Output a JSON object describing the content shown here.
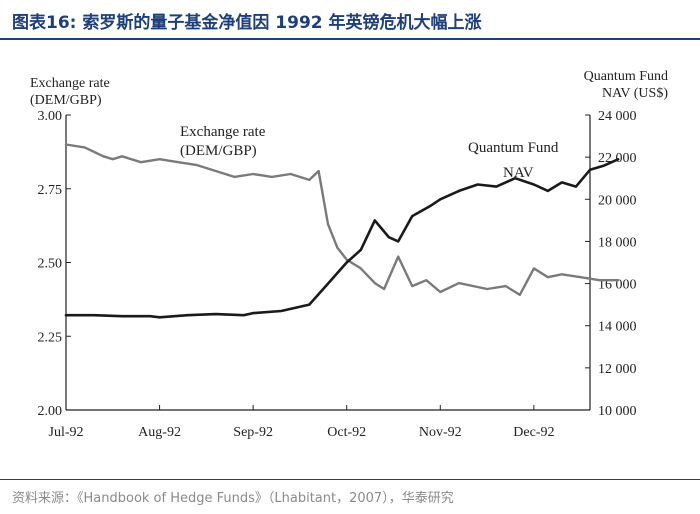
{
  "figure_title": "图表16:  索罗斯的量子基金净值因 1992 年英镑危机大幅上涨",
  "source_text": "资料来源：《Handbook of Hedge Funds》（Lhabitant，2007），华泰研究",
  "chart_data": {
    "type": "line",
    "x_categories": [
      "Jul-92",
      "Aug-92",
      "Sep-92",
      "Oct-92",
      "Nov-92",
      "Dec-92"
    ],
    "left_axis": {
      "label_line1": "Exchange rate",
      "label_line2": "(DEM/GBP)",
      "range": [
        2.0,
        3.0
      ],
      "ticks": [
        "3.00",
        "2.75",
        "2.50",
        "2.25",
        "2.00"
      ],
      "tick_values": [
        3.0,
        2.75,
        2.5,
        2.25,
        2.0
      ]
    },
    "right_axis": {
      "label_line1": "Quantum Fund",
      "label_line2": "NAV (US$)",
      "range": [
        10000,
        24000
      ],
      "ticks": [
        "24 000",
        "22 000",
        "20 000",
        "18 000",
        "16 000",
        "14 000",
        "12 000",
        "10 000"
      ],
      "tick_values": [
        24000,
        22000,
        20000,
        18000,
        16000,
        14000,
        12000,
        10000
      ]
    },
    "annotations": {
      "exchange_line1": "Exchange rate",
      "exchange_line2": "(DEM/GBP)",
      "fund_line1": "Quantum Fund",
      "fund_line2": "NAV"
    },
    "series": [
      {
        "name": "Exchange rate (DEM/GBP)",
        "axis": "left",
        "color": "#7a7a7a",
        "x": [
          0.0,
          0.2,
          0.4,
          0.5,
          0.6,
          0.8,
          1.0,
          1.2,
          1.4,
          1.6,
          1.8,
          2.0,
          2.2,
          2.4,
          2.6,
          2.7,
          2.8,
          2.9,
          3.0,
          3.15,
          3.3,
          3.4,
          3.55,
          3.7,
          3.85,
          4.0,
          4.2,
          4.5,
          4.7,
          4.85,
          5.0,
          5.15,
          5.3,
          5.5,
          5.7,
          5.9
        ],
        "values": [
          2.9,
          2.89,
          2.86,
          2.85,
          2.86,
          2.84,
          2.85,
          2.84,
          2.83,
          2.81,
          2.79,
          2.8,
          2.79,
          2.8,
          2.78,
          2.81,
          2.63,
          2.55,
          2.51,
          2.48,
          2.43,
          2.41,
          2.52,
          2.42,
          2.44,
          2.4,
          2.43,
          2.41,
          2.42,
          2.39,
          2.48,
          2.45,
          2.46,
          2.45,
          2.44,
          2.44
        ]
      },
      {
        "name": "Quantum Fund NAV (US$)",
        "axis": "right",
        "color": "#1a1a1a",
        "x": [
          0.0,
          0.3,
          0.6,
          0.9,
          1.0,
          1.3,
          1.6,
          1.9,
          2.0,
          2.3,
          2.6,
          2.8,
          2.9,
          3.0,
          3.15,
          3.3,
          3.45,
          3.55,
          3.7,
          3.9,
          4.0,
          4.2,
          4.4,
          4.6,
          4.8,
          5.0,
          5.15,
          5.3,
          5.45,
          5.6,
          5.75,
          5.9
        ],
        "values": [
          14500,
          14500,
          14450,
          14450,
          14400,
          14500,
          14550,
          14500,
          14600,
          14700,
          15000,
          16000,
          16500,
          17000,
          17600,
          19000,
          18200,
          18000,
          19200,
          19700,
          20000,
          20400,
          20700,
          20600,
          21000,
          20700,
          20400,
          20800,
          20600,
          21400,
          21600,
          21900
        ]
      }
    ]
  }
}
